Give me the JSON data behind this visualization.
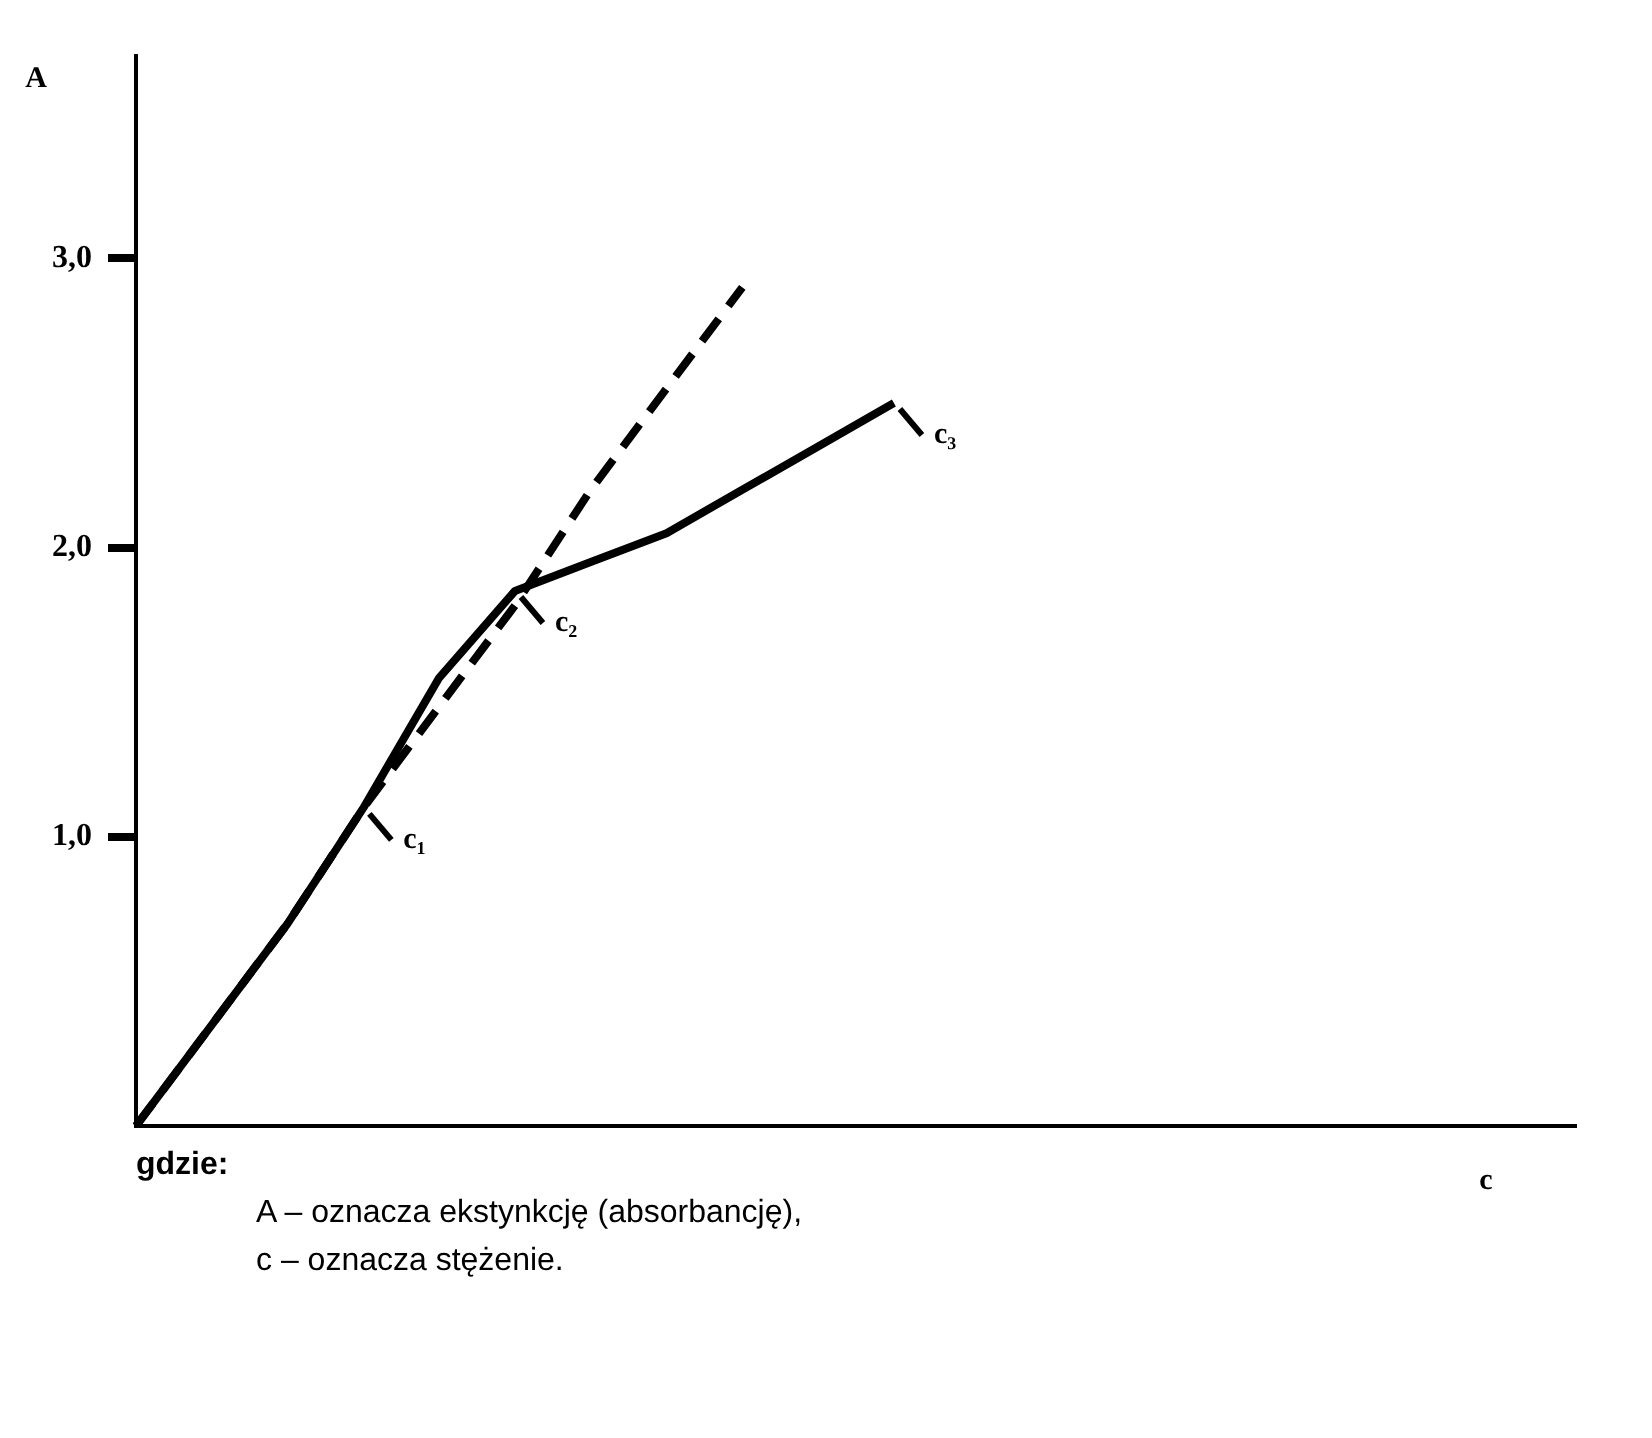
{
  "chart_data": {
    "type": "line",
    "xlabel": "c",
    "ylabel": "A",
    "categories": [
      null,
      null,
      null,
      null,
      null,
      null,
      null,
      null,
      null,
      null,
      null,
      null,
      null,
      null,
      null,
      null,
      null,
      null,
      null,
      null
    ],
    "ylim": [
      0,
      3.7
    ],
    "yticks": [
      {
        "value": 1,
        "label": "1,0"
      },
      {
        "value": 2,
        "label": "2,0"
      },
      {
        "value": 3,
        "label": "3,0"
      }
    ],
    "tick_labels": "y",
    "grid": false,
    "legend": false,
    "marker": "none",
    "series": [
      {
        "color": "#000000",
        "line_style": "solid",
        "values": [
          0,
          0.35,
          0.7,
          1.1,
          1.55,
          1.85,
          1.95,
          2.05,
          2.2,
          2.35,
          2.5,
          null,
          null,
          null,
          null,
          null,
          null,
          null,
          null,
          null
        ],
        "value_labels": [
          null,
          null,
          null,
          "c₁",
          null,
          "c₂",
          null,
          null,
          null,
          null,
          "c₃",
          null,
          null,
          null,
          null,
          null,
          null,
          null,
          null,
          null
        ]
      },
      {
        "color": "#000000",
        "line_style": "dashed",
        "values": [
          0,
          0.35,
          0.7,
          1.1,
          1.45,
          1.8,
          2.2,
          2.55,
          2.9,
          null,
          null,
          null,
          null,
          null,
          null,
          null,
          null,
          null,
          null,
          null
        ]
      }
    ],
    "annotations": [
      "gdzie:",
      "A – oznacza ekstynkcję (absorbancję),",
      "c – oznacza stężenie."
    ]
  }
}
